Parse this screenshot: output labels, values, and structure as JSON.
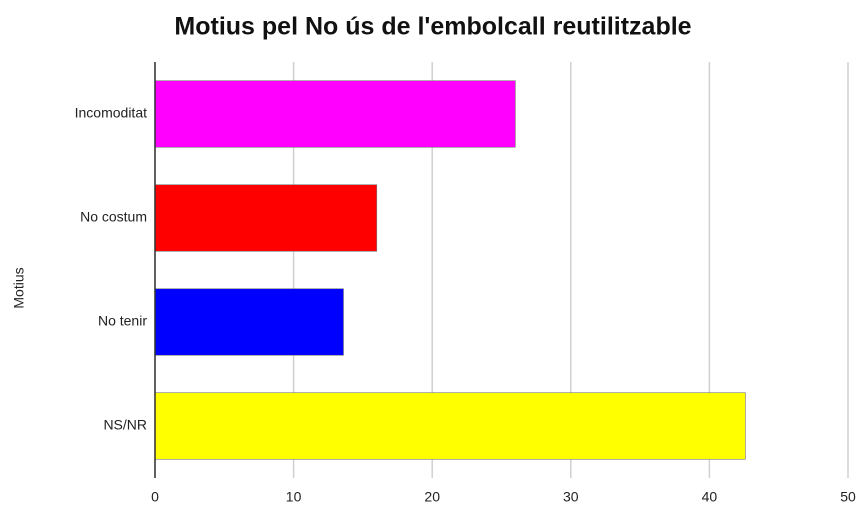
{
  "chart_data": {
    "type": "hbar",
    "title": "Motius pel No ús de l'embolcall reutilitzable",
    "y_label": "Motius",
    "categories": [
      "Incomoditat",
      "No costum",
      "No tenir",
      "NS/NR"
    ],
    "values": [
      26,
      16,
      13.6,
      42.6
    ],
    "colors": [
      "#ff00ff",
      "#ff0000",
      "#0000ff",
      "#ffff00"
    ],
    "xlim": [
      0,
      50
    ],
    "xticks": [
      0,
      10,
      20,
      30,
      40,
      50
    ],
    "grid": true
  }
}
